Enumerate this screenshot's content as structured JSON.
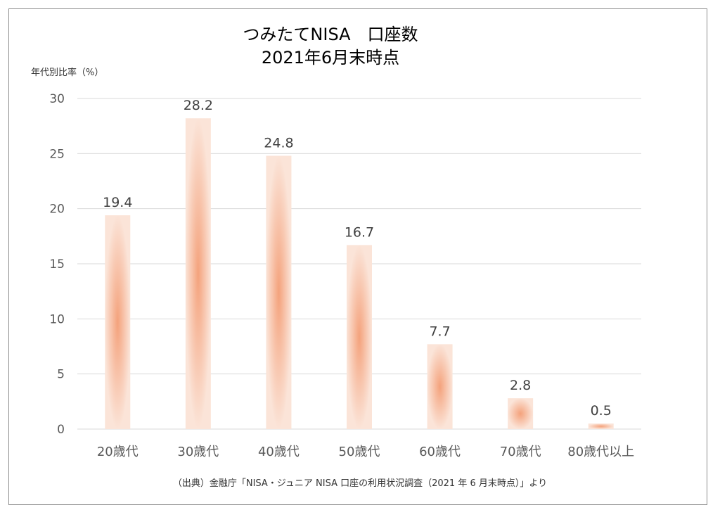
{
  "chart_data": {
    "type": "bar",
    "title_lines": [
      "つみたてNISA　口座数",
      "2021年6月末時点"
    ],
    "ylabel": "年代別比率（%）",
    "xlabel": "",
    "categories": [
      "20歳代",
      "30歳代",
      "40歳代",
      "50歳代",
      "60歳代",
      "70歳代",
      "80歳代以上"
    ],
    "values": [
      19.4,
      28.2,
      24.8,
      16.7,
      7.7,
      2.8,
      0.5
    ],
    "data_labels": [
      "19.4",
      "28.2",
      "24.8",
      "16.7",
      "7.7",
      "2.8",
      "0.5"
    ],
    "ylim": [
      0,
      30
    ],
    "yticks": [
      0,
      5,
      10,
      15,
      20,
      25,
      30
    ],
    "grid": true,
    "legend": "none",
    "bar_color_center": "#f4a27c",
    "bar_color_edge": "#fbe4d8",
    "source": "（出典）金融庁「NISA・ジュニア NISA 口座の利用状況調査（2021 年 6 月末時点）」より"
  }
}
